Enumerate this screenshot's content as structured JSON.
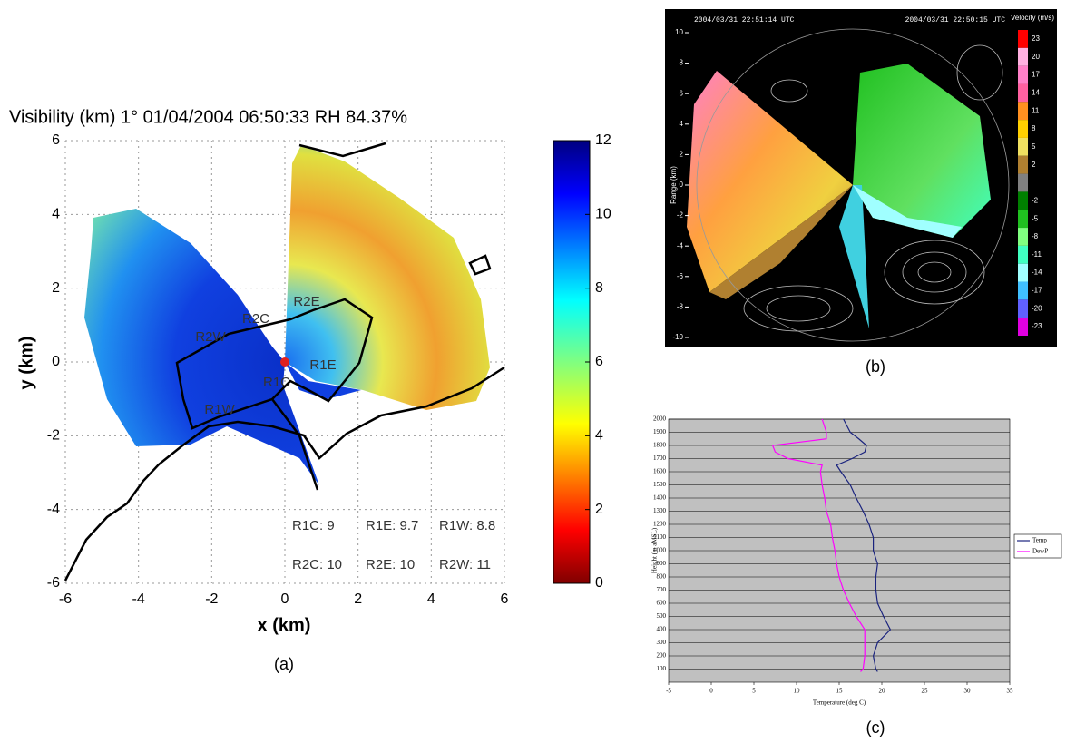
{
  "chart_data": [
    {
      "type": "map",
      "title": "Visibility (km)   1° 01/04/2004   06:50:33   RH 84.37%",
      "x_label": "x (km)",
      "y_label": "y (km)",
      "xlim": [
        -6,
        6
      ],
      "xticks": [
        -6,
        -4,
        -2,
        0,
        2,
        4,
        6
      ],
      "ylim": [
        -6,
        6
      ],
      "yticks": [
        -6,
        -4,
        -2,
        0,
        2,
        4,
        6
      ],
      "grid": true,
      "colorbar": {
        "lim": [
          0,
          12
        ],
        "ticks": [
          0,
          2,
          4,
          6,
          8,
          10,
          12
        ],
        "colormap": "jet_r"
      },
      "site_labels": [
        "R2E",
        "R2C",
        "R2W",
        "R1C",
        "R1E",
        "R1W"
      ],
      "annotations": [
        "R1C: 9",
        "R1E: 9.7",
        "R1W: 8.8",
        "R2C: 10",
        "R2E: 10",
        "R2W: 11"
      ],
      "caption": "(a)"
    },
    {
      "type": "radar",
      "left_time": "2004/03/31 22:51:14 UTC",
      "right_time": "2004/03/31 22:50:15 UTC",
      "y_label": "Range (km)",
      "ylim": [
        -10,
        10
      ],
      "yticks": [
        10,
        8,
        6,
        4,
        2,
        0,
        -2,
        -4,
        -6,
        -8,
        -10
      ],
      "colorbar": {
        "title": "Velocity (m/s)",
        "labels": [
          23,
          20,
          17,
          14,
          11,
          8,
          5,
          2,
          null,
          -2,
          -5,
          -8,
          -11,
          -14,
          -17,
          -20,
          -23
        ],
        "colors": [
          "#ff0000",
          "#ffb0e0",
          "#ff80c8",
          "#ff60a0",
          "#ff9020",
          "#ffd000",
          "#f0e060",
          "#b08030",
          "#808080",
          "#008000",
          "#20c020",
          "#80ff80",
          "#40ffc0",
          "#a0ffff",
          "#40c0ff",
          "#6060ff",
          "#e000e0"
        ]
      },
      "caption": "(b)"
    },
    {
      "type": "line",
      "x_label": "Temperature (deg C)",
      "y_label": "Height (m aMSL)",
      "xlim": [
        -5,
        35
      ],
      "xticks": [
        -5,
        0,
        5,
        10,
        15,
        20,
        25,
        30,
        35
      ],
      "ylim": [
        0,
        2000
      ],
      "yticks": [
        100,
        200,
        300,
        400,
        500,
        600,
        700,
        800,
        900,
        1000,
        1100,
        1200,
        1300,
        1400,
        1500,
        1600,
        1700,
        1800,
        1900,
        2000
      ],
      "grid": true,
      "background": "#c0c0c0",
      "y": [
        80,
        100,
        200,
        300,
        400,
        500,
        600,
        700,
        800,
        900,
        1000,
        1100,
        1200,
        1300,
        1400,
        1500,
        1600,
        1650,
        1700,
        1750,
        1800,
        1850,
        1900,
        2000
      ],
      "series": [
        {
          "name": "Temp",
          "color": "#1a237e",
          "values": [
            19.5,
            19.3,
            19.0,
            19.5,
            21.0,
            20.2,
            19.5,
            19.3,
            19.3,
            19.5,
            19.0,
            19.0,
            18.5,
            17.8,
            17.0,
            16.3,
            15.2,
            14.7,
            16.5,
            18.0,
            18.2,
            17.3,
            16.3,
            15.5
          ]
        },
        {
          "name": "DewP",
          "color": "#ff00ff",
          "values": [
            17.5,
            17.8,
            18.0,
            18.0,
            18.0,
            17.0,
            16.2,
            15.5,
            15.0,
            14.7,
            14.5,
            14.2,
            14.0,
            13.5,
            13.3,
            13.0,
            12.8,
            13.0,
            9.0,
            7.5,
            7.2,
            13.5,
            13.5,
            13.0
          ]
        }
      ],
      "caption": "(c)"
    }
  ]
}
